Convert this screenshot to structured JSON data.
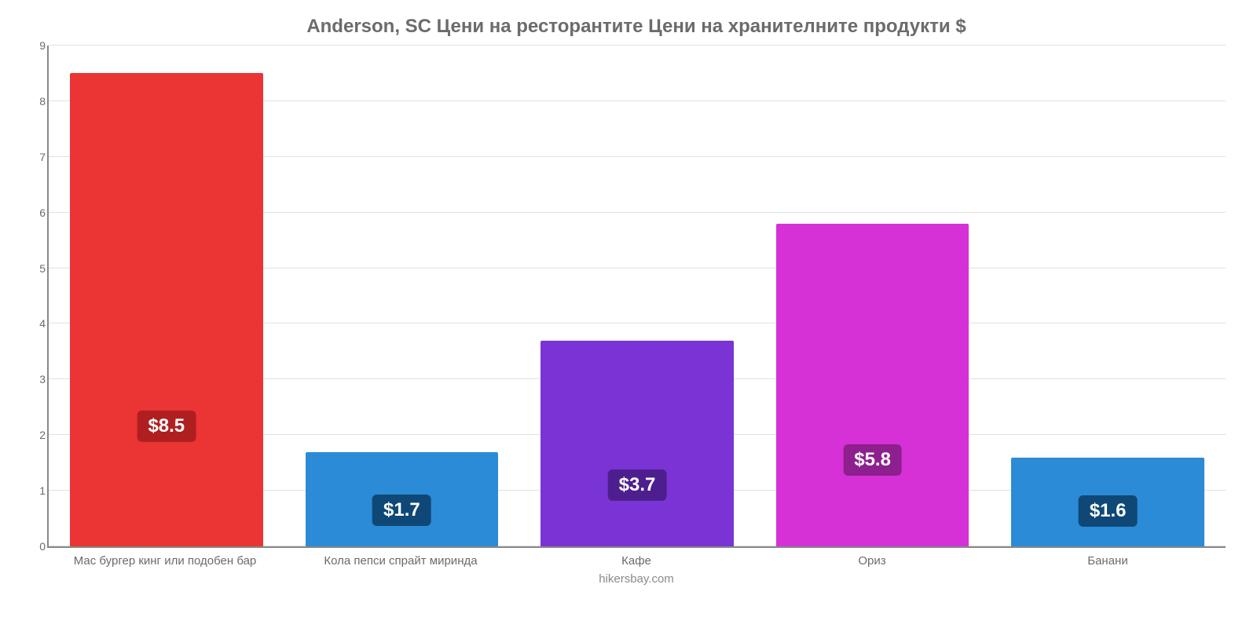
{
  "chart": {
    "type": "bar",
    "title": "Anderson, SC Цени на ресторантите Цени на хранителните продукти $",
    "title_fontsize": 24,
    "title_color": "#6b6b6b",
    "background_color": "#ffffff",
    "axis_color": "#888888",
    "grid_color": "rgba(170,170,170,0.35)",
    "ylim": [
      0,
      9
    ],
    "ytick_step": 1,
    "yticks": [
      0,
      1,
      2,
      3,
      4,
      5,
      6,
      7,
      8,
      9
    ],
    "categories": [
      "Мас бургер кинг или подобен бар",
      "Кола пепси спрайт миринда",
      "Кафе",
      "Ориз",
      "Банани"
    ],
    "values": [
      8.5,
      1.7,
      3.7,
      5.8,
      1.6
    ],
    "value_labels": [
      "$8.5",
      "$1.7",
      "$3.7",
      "$5.8",
      "$1.6"
    ],
    "bar_colors": [
      "#eb3434",
      "#2c8bd6",
      "#7a34d6",
      "#d631d6",
      "#2c8bd6"
    ],
    "label_bg_colors": [
      "#b01f1f",
      "#0f4876",
      "#4d1f8e",
      "#8e1f8e",
      "#0f4876"
    ],
    "bar_width": 0.82,
    "x_label_fontsize": 15,
    "value_label_fontsize": 24,
    "value_label_color": "#ffffff",
    "attribution": "hikersbay.com",
    "attribution_color": "#8a8a8a"
  }
}
